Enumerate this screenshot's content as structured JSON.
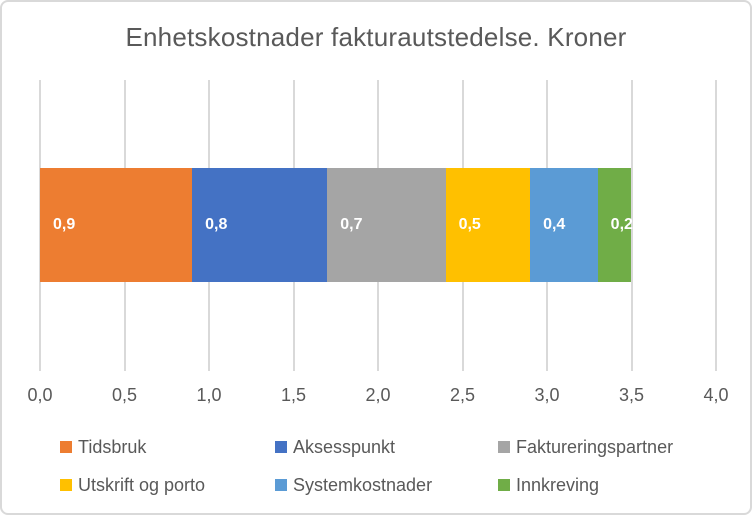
{
  "colors": {
    "text": "#595959",
    "gridline": "#D9D9D9",
    "chart_border": "#D9D9D9",
    "data_label_text": "#FFFFFF",
    "background": "#FFFFFF"
  },
  "chart_data": {
    "type": "bar",
    "variant": "horizontal-stacked",
    "title": "Enhetskostnader fakturautstedelse. Kroner",
    "grid": true,
    "legend_position": "bottom",
    "series": [
      {
        "name": "Tidsbruk",
        "value": 0.9,
        "label": "0,9",
        "color": "#ED7D31"
      },
      {
        "name": "Aksesspunkt",
        "value": 0.8,
        "label": "0,8",
        "color": "#4472C4"
      },
      {
        "name": "Faktureringspartner",
        "value": 0.7,
        "label": "0,7",
        "color": "#A5A5A5"
      },
      {
        "name": "Utskrift og porto",
        "value": 0.5,
        "label": "0,5",
        "color": "#FFC000"
      },
      {
        "name": "Systemkostnader",
        "value": 0.4,
        "label": "0,4",
        "color": "#5B9BD5"
      },
      {
        "name": "Innkreving",
        "value": 0.2,
        "label": "0,2",
        "color": "#70AD47"
      }
    ],
    "x_axis": {
      "min": 0,
      "max": 4,
      "tick_step": 0.5,
      "tick_labels": [
        "0,0",
        "0,5",
        "1,0",
        "1,5",
        "2,0",
        "2,5",
        "3,0",
        "3,5",
        "4,0"
      ]
    }
  }
}
